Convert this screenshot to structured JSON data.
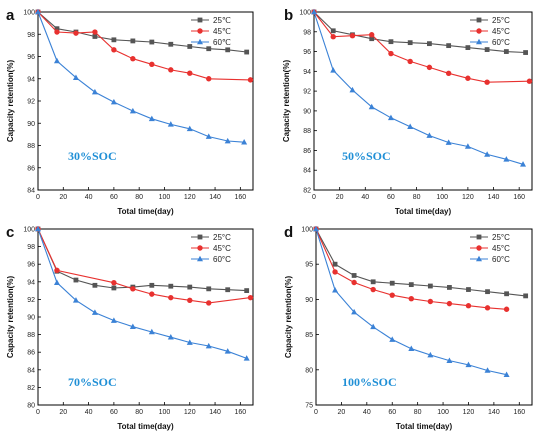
{
  "chart_data": [
    {
      "type": "line",
      "panel_label": "a",
      "annotation": "30%SOC",
      "xlabel": "Total time(day)",
      "ylabel": "Capacity retention(%)",
      "xlim": [
        0,
        170
      ],
      "ylim": [
        84,
        100
      ],
      "xticks": [
        0,
        20,
        40,
        60,
        80,
        100,
        120,
        140,
        160
      ],
      "yticks": [
        84,
        86,
        88,
        90,
        92,
        94,
        96,
        98,
        100
      ],
      "legend_position": "top-right",
      "series": [
        {
          "name": "25℃",
          "color": "#555555",
          "marker": "square",
          "x": [
            0,
            15,
            30,
            45,
            60,
            75,
            90,
            105,
            120,
            135,
            150,
            165
          ],
          "y": [
            100,
            98.5,
            98.2,
            97.8,
            97.5,
            97.4,
            97.3,
            97.1,
            96.9,
            96.7,
            96.6,
            96.4
          ]
        },
        {
          "name": "45℃",
          "color": "#e8312f",
          "marker": "circle",
          "x": [
            0,
            15,
            30,
            45,
            60,
            75,
            90,
            105,
            120,
            135,
            168
          ],
          "y": [
            100,
            98.2,
            98.1,
            98.2,
            96.6,
            95.8,
            95.3,
            94.8,
            94.5,
            94.0,
            93.9
          ]
        },
        {
          "name": "60℃",
          "color": "#3b82d6",
          "marker": "triangle",
          "x": [
            0,
            15,
            30,
            45,
            60,
            75,
            90,
            105,
            120,
            135,
            150,
            163
          ],
          "y": [
            100,
            95.6,
            94.1,
            92.8,
            91.9,
            91.1,
            90.4,
            89.9,
            89.5,
            88.8,
            88.4,
            88.3
          ]
        }
      ]
    },
    {
      "type": "line",
      "panel_label": "b",
      "annotation": "50%SOC",
      "xlabel": "Total time(day)",
      "ylabel": "Capacity retention(%)",
      "xlim": [
        0,
        170
      ],
      "ylim": [
        82,
        100
      ],
      "xticks": [
        0,
        20,
        40,
        60,
        80,
        100,
        120,
        140,
        160
      ],
      "yticks": [
        82,
        84,
        86,
        88,
        90,
        92,
        94,
        96,
        98,
        100
      ],
      "legend_position": "top-right",
      "series": [
        {
          "name": "25°C",
          "color": "#555555",
          "marker": "square",
          "x": [
            0,
            15,
            30,
            45,
            60,
            75,
            90,
            105,
            120,
            135,
            150,
            165
          ],
          "y": [
            100,
            98.1,
            97.7,
            97.3,
            97.0,
            96.9,
            96.8,
            96.6,
            96.4,
            96.2,
            96.0,
            95.9
          ]
        },
        {
          "name": "45°C",
          "color": "#e8312f",
          "marker": "circle",
          "x": [
            0,
            15,
            30,
            45,
            60,
            75,
            90,
            105,
            120,
            135,
            168
          ],
          "y": [
            100,
            97.5,
            97.6,
            97.7,
            95.8,
            95.0,
            94.4,
            93.8,
            93.3,
            92.9,
            93.0
          ]
        },
        {
          "name": "60°C",
          "color": "#3b82d6",
          "marker": "triangle",
          "x": [
            0,
            15,
            30,
            45,
            60,
            75,
            90,
            105,
            120,
            135,
            150,
            163
          ],
          "y": [
            100,
            94.1,
            92.1,
            90.4,
            89.3,
            88.4,
            87.5,
            86.8,
            86.4,
            85.6,
            85.1,
            84.6
          ]
        }
      ]
    },
    {
      "type": "line",
      "panel_label": "c",
      "annotation": "70%SOC",
      "xlabel": "Total time(day)",
      "ylabel": "Capacity retention(%)",
      "xlim": [
        0,
        170
      ],
      "ylim": [
        80,
        100
      ],
      "xticks": [
        0,
        20,
        40,
        60,
        80,
        100,
        120,
        140,
        160
      ],
      "yticks": [
        80,
        82,
        84,
        86,
        88,
        90,
        92,
        94,
        96,
        98,
        100
      ],
      "legend_position": "top-right",
      "series": [
        {
          "name": "25°C",
          "color": "#555555",
          "marker": "square",
          "x": [
            0,
            15,
            30,
            45,
            60,
            75,
            90,
            105,
            120,
            135,
            150,
            165
          ],
          "y": [
            100,
            95.2,
            94.2,
            93.6,
            93.3,
            93.4,
            93.6,
            93.5,
            93.4,
            93.2,
            93.1,
            93.0
          ]
        },
        {
          "name": "45°C",
          "color": "#e8312f",
          "marker": "circle",
          "x": [
            0,
            15,
            60,
            75,
            90,
            105,
            120,
            135,
            168
          ],
          "y": [
            100,
            95.3,
            93.9,
            93.2,
            92.6,
            92.2,
            91.9,
            91.6,
            92.2
          ]
        },
        {
          "name": "60°C",
          "color": "#3b82d6",
          "marker": "triangle",
          "x": [
            0,
            15,
            30,
            45,
            60,
            75,
            90,
            105,
            120,
            135,
            150,
            165
          ],
          "y": [
            100,
            93.9,
            91.9,
            90.5,
            89.6,
            88.9,
            88.3,
            87.7,
            87.1,
            86.7,
            86.1,
            85.3
          ]
        }
      ]
    },
    {
      "type": "line",
      "panel_label": "d",
      "annotation": "100%SOC",
      "xlabel": "Total time(day)",
      "ylabel": "Capacity retention(%)",
      "xlim": [
        0,
        170
      ],
      "ylim": [
        75,
        100
      ],
      "xticks": [
        0,
        20,
        40,
        60,
        80,
        100,
        120,
        140,
        160
      ],
      "yticks": [
        75,
        80,
        85,
        90,
        95,
        100
      ],
      "legend_position": "top-right",
      "series": [
        {
          "name": "25°C",
          "color": "#555555",
          "marker": "square",
          "x": [
            0,
            15,
            30,
            45,
            60,
            75,
            90,
            105,
            120,
            135,
            150,
            165
          ],
          "y": [
            100,
            95.0,
            93.4,
            92.5,
            92.3,
            92.1,
            91.9,
            91.7,
            91.4,
            91.1,
            90.8,
            90.5
          ]
        },
        {
          "name": "45°C",
          "color": "#e8312f",
          "marker": "circle",
          "x": [
            0,
            15,
            30,
            45,
            60,
            75,
            90,
            105,
            120,
            135,
            150
          ],
          "y": [
            100,
            93.9,
            92.4,
            91.4,
            90.6,
            90.1,
            89.7,
            89.4,
            89.1,
            88.8,
            88.6
          ]
        },
        {
          "name": "60°C",
          "color": "#3b82d6",
          "marker": "triangle",
          "x": [
            0,
            15,
            30,
            45,
            60,
            75,
            90,
            105,
            120,
            135,
            150
          ],
          "y": [
            100,
            91.3,
            88.2,
            86.1,
            84.3,
            83.0,
            82.1,
            81.3,
            80.7,
            79.9,
            79.3
          ]
        }
      ]
    }
  ],
  "colors": {
    "axis": "#000000",
    "annotation": "#1f8fd6"
  }
}
